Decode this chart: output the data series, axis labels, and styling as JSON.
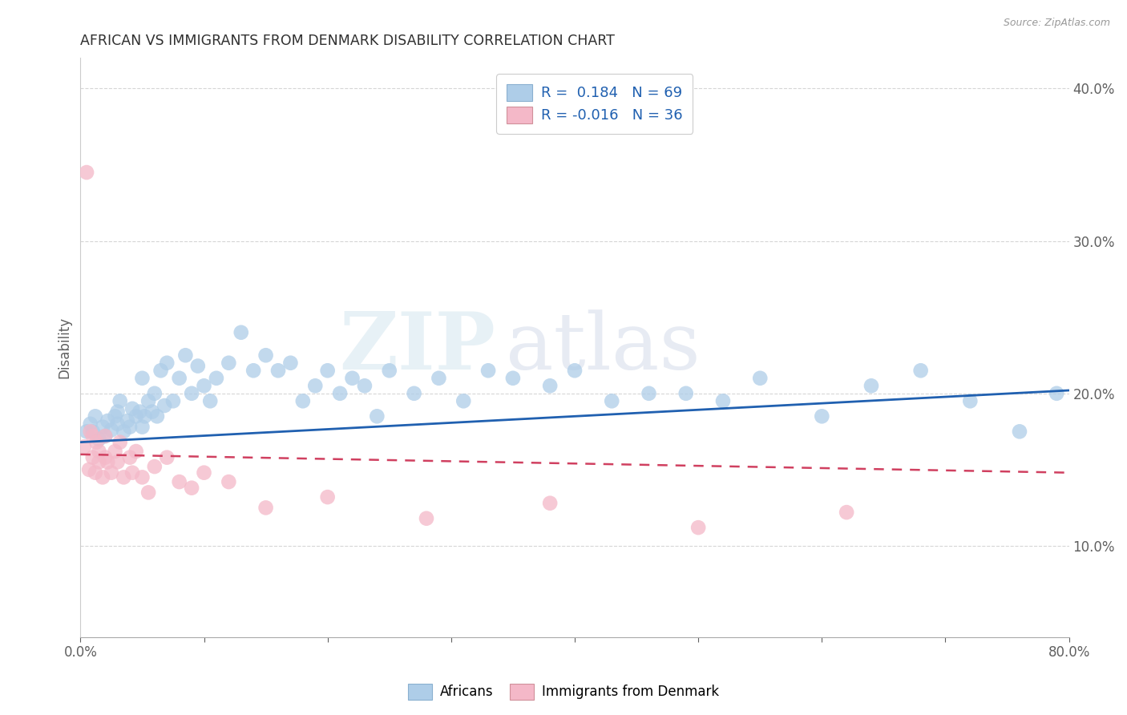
{
  "title": "AFRICAN VS IMMIGRANTS FROM DENMARK DISABILITY CORRELATION CHART",
  "source": "Source: ZipAtlas.com",
  "ylabel": "Disability",
  "xlim": [
    0.0,
    0.8
  ],
  "ylim": [
    0.04,
    0.42
  ],
  "yticks": [
    0.1,
    0.2,
    0.3,
    0.4
  ],
  "ytick_labels": [
    "10.0%",
    "20.0%",
    "30.0%",
    "40.0%"
  ],
  "blue_color": "#aecde8",
  "pink_color": "#f4b8c8",
  "blue_line_color": "#2060b0",
  "pink_line_color": "#d04060",
  "watermark_zip": "ZIP",
  "watermark_atlas": "atlas",
  "grid_color": "#cccccc",
  "background_color": "#ffffff",
  "title_color": "#303030",
  "axis_color": "#606060",
  "africans_x": [
    0.005,
    0.008,
    0.01,
    0.012,
    0.015,
    0.018,
    0.02,
    0.022,
    0.025,
    0.028,
    0.03,
    0.03,
    0.032,
    0.035,
    0.038,
    0.04,
    0.042,
    0.045,
    0.048,
    0.05,
    0.05,
    0.052,
    0.055,
    0.058,
    0.06,
    0.062,
    0.065,
    0.068,
    0.07,
    0.075,
    0.08,
    0.085,
    0.09,
    0.095,
    0.1,
    0.105,
    0.11,
    0.12,
    0.13,
    0.14,
    0.15,
    0.16,
    0.17,
    0.18,
    0.19,
    0.2,
    0.21,
    0.22,
    0.23,
    0.24,
    0.25,
    0.27,
    0.29,
    0.31,
    0.33,
    0.35,
    0.38,
    0.4,
    0.43,
    0.46,
    0.49,
    0.52,
    0.55,
    0.6,
    0.64,
    0.68,
    0.72,
    0.76,
    0.79
  ],
  "africans_y": [
    0.175,
    0.18,
    0.175,
    0.185,
    0.17,
    0.178,
    0.172,
    0.182,
    0.176,
    0.185,
    0.18,
    0.188,
    0.195,
    0.175,
    0.182,
    0.178,
    0.19,
    0.185,
    0.188,
    0.178,
    0.21,
    0.185,
    0.195,
    0.188,
    0.2,
    0.185,
    0.215,
    0.192,
    0.22,
    0.195,
    0.21,
    0.225,
    0.2,
    0.218,
    0.205,
    0.195,
    0.21,
    0.22,
    0.24,
    0.215,
    0.225,
    0.215,
    0.22,
    0.195,
    0.205,
    0.215,
    0.2,
    0.21,
    0.205,
    0.185,
    0.215,
    0.2,
    0.21,
    0.195,
    0.215,
    0.21,
    0.205,
    0.215,
    0.195,
    0.2,
    0.2,
    0.195,
    0.21,
    0.185,
    0.205,
    0.215,
    0.195,
    0.175,
    0.2
  ],
  "denmark_x": [
    0.003,
    0.005,
    0.007,
    0.008,
    0.01,
    0.01,
    0.012,
    0.013,
    0.015,
    0.015,
    0.018,
    0.02,
    0.02,
    0.022,
    0.025,
    0.028,
    0.03,
    0.032,
    0.035,
    0.04,
    0.042,
    0.045,
    0.05,
    0.055,
    0.06,
    0.07,
    0.08,
    0.09,
    0.1,
    0.12,
    0.15,
    0.2,
    0.28,
    0.38,
    0.5,
    0.62
  ],
  "denmark_y": [
    0.165,
    0.345,
    0.15,
    0.175,
    0.158,
    0.172,
    0.148,
    0.168,
    0.155,
    0.162,
    0.145,
    0.158,
    0.172,
    0.155,
    0.148,
    0.162,
    0.155,
    0.168,
    0.145,
    0.158,
    0.148,
    0.162,
    0.145,
    0.135,
    0.152,
    0.158,
    0.142,
    0.138,
    0.148,
    0.142,
    0.125,
    0.132,
    0.118,
    0.128,
    0.112,
    0.122
  ],
  "af_line_x": [
    0.0,
    0.8
  ],
  "af_line_y": [
    0.168,
    0.202
  ],
  "dk_line_x": [
    0.0,
    0.8
  ],
  "dk_line_y": [
    0.16,
    0.148
  ]
}
